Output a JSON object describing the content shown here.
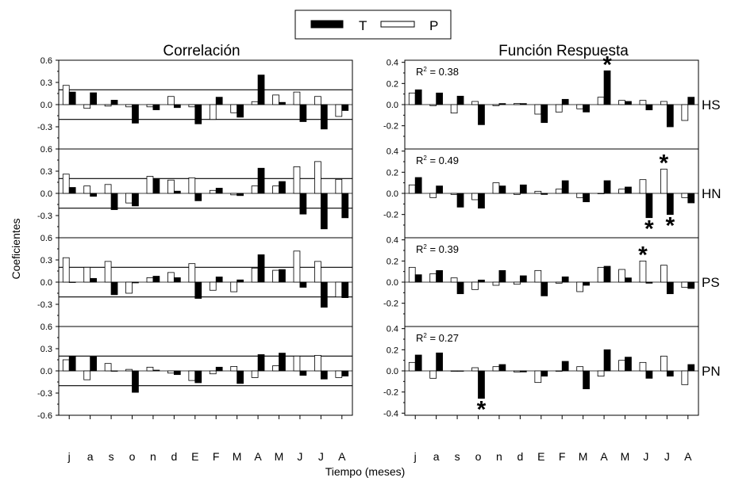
{
  "legend": {
    "t_label": "T",
    "p_label": "P"
  },
  "titles": {
    "left": "Correlación",
    "right": "Función Respuesta"
  },
  "xlabel": "Tiempo (meses)",
  "ylabel": "Coeficientes",
  "months": [
    "j",
    "a",
    "s",
    "o",
    "n",
    "d",
    "E",
    "F",
    "M",
    "A",
    "M",
    "J",
    "J",
    "A"
  ],
  "colors": {
    "T": "#000000",
    "P": "#ffffff",
    "stroke": "#000000"
  },
  "chart_data": [
    {
      "type": "bar",
      "panel": "correlacion",
      "row": "HS",
      "categories": [
        "j",
        "a",
        "s",
        "o",
        "n",
        "d",
        "E",
        "F",
        "M",
        "A",
        "M",
        "J",
        "J",
        "A"
      ],
      "ylim": [
        -0.6,
        0.6
      ],
      "yticks": [
        "0.6",
        "0.3",
        "0.0",
        "-0.3",
        "-0.6"
      ],
      "reference_lines": [
        0.2,
        -0.2
      ],
      "series": [
        {
          "name": "P",
          "values": [
            0.26,
            -0.05,
            -0.02,
            -0.03,
            -0.03,
            0.11,
            -0.03,
            -0.2,
            -0.11,
            0.04,
            0.13,
            0.17,
            0.11,
            -0.16
          ]
        },
        {
          "name": "T",
          "values": [
            0.17,
            0.16,
            0.06,
            -0.25,
            -0.07,
            -0.04,
            -0.26,
            0.1,
            -0.17,
            0.4,
            0.03,
            -0.23,
            -0.33,
            -0.08
          ]
        }
      ]
    },
    {
      "type": "bar",
      "panel": "correlacion",
      "row": "HN",
      "categories": [
        "j",
        "a",
        "s",
        "o",
        "n",
        "d",
        "E",
        "F",
        "M",
        "A",
        "M",
        "J",
        "J",
        "A"
      ],
      "ylim": [
        -0.6,
        0.6
      ],
      "yticks": [
        "0.6",
        "0.3",
        "0.0",
        "-0.3",
        "-0.6"
      ],
      "reference_lines": [
        0.2,
        -0.2
      ],
      "series": [
        {
          "name": "P",
          "values": [
            0.26,
            0.1,
            0.12,
            -0.13,
            0.23,
            0.18,
            0.21,
            0.04,
            -0.02,
            0.1,
            0.1,
            0.36,
            0.43,
            0.19
          ]
        },
        {
          "name": "T",
          "values": [
            0.08,
            -0.04,
            -0.22,
            -0.17,
            0.2,
            0.03,
            -0.1,
            0.07,
            -0.03,
            0.34,
            0.16,
            -0.28,
            -0.48,
            -0.33
          ]
        }
      ]
    },
    {
      "type": "bar",
      "panel": "correlacion",
      "row": "PS",
      "categories": [
        "j",
        "a",
        "s",
        "o",
        "n",
        "d",
        "E",
        "F",
        "M",
        "A",
        "M",
        "J",
        "J",
        "A"
      ],
      "ylim": [
        -0.6,
        0.6
      ],
      "yticks": [
        "0.6",
        "0.3",
        "0.0",
        "-0.3",
        "-0.6"
      ],
      "reference_lines": [
        0.2,
        -0.2
      ],
      "series": [
        {
          "name": "P",
          "values": [
            0.33,
            0.2,
            0.28,
            -0.15,
            0.06,
            0.13,
            0.25,
            -0.11,
            -0.13,
            0.19,
            0.16,
            0.42,
            0.28,
            -0.2
          ]
        },
        {
          "name": "T",
          "values": [
            0.0,
            0.05,
            -0.17,
            -0.01,
            0.08,
            0.06,
            -0.22,
            0.07,
            0.03,
            0.37,
            0.17,
            -0.07,
            -0.34,
            -0.21
          ]
        }
      ]
    },
    {
      "type": "bar",
      "panel": "correlacion",
      "row": "PN",
      "categories": [
        "j",
        "a",
        "s",
        "o",
        "n",
        "d",
        "E",
        "F",
        "M",
        "A",
        "M",
        "J",
        "J",
        "A"
      ],
      "ylim": [
        -0.6,
        0.6
      ],
      "yticks": [
        "0.6",
        "0.3",
        "0.0",
        "-0.3",
        "-0.6"
      ],
      "reference_lines": [
        0.2,
        -0.2
      ],
      "series": [
        {
          "name": "P",
          "values": [
            0.15,
            -0.12,
            0.1,
            0.02,
            0.05,
            -0.03,
            -0.13,
            -0.04,
            0.06,
            -0.09,
            0.07,
            0.2,
            0.21,
            -0.09
          ]
        },
        {
          "name": "T",
          "values": [
            0.2,
            0.19,
            0.0,
            -0.29,
            0.01,
            -0.05,
            -0.16,
            0.05,
            -0.17,
            0.22,
            0.24,
            -0.06,
            -0.11,
            -0.07
          ]
        }
      ]
    },
    {
      "type": "bar",
      "panel": "funcion_respuesta",
      "row": "HS",
      "r2": "= 0.38",
      "categories": [
        "j",
        "a",
        "s",
        "o",
        "n",
        "d",
        "E",
        "F",
        "M",
        "A",
        "M",
        "J",
        "J",
        "A"
      ],
      "ylim": [
        -0.42,
        0.42
      ],
      "yticks": [
        "0.4",
        "0.2",
        "0.0",
        "-0.2"
      ],
      "significant": [
        {
          "category_index": 9,
          "series": "T",
          "position": "above"
        }
      ],
      "series": [
        {
          "name": "P",
          "values": [
            0.11,
            -0.01,
            -0.08,
            0.03,
            -0.01,
            0.01,
            -0.09,
            -0.07,
            -0.04,
            0.07,
            0.04,
            0.04,
            0.03,
            -0.15
          ]
        },
        {
          "name": "T",
          "values": [
            0.14,
            0.11,
            0.08,
            -0.19,
            0.01,
            0.01,
            -0.17,
            0.05,
            -0.07,
            0.32,
            0.03,
            -0.05,
            -0.21,
            0.07
          ]
        }
      ]
    },
    {
      "type": "bar",
      "panel": "funcion_respuesta",
      "row": "HN",
      "r2": "= 0.49",
      "categories": [
        "j",
        "a",
        "s",
        "o",
        "n",
        "d",
        "E",
        "F",
        "M",
        "A",
        "M",
        "J",
        "J",
        "A"
      ],
      "ylim": [
        -0.42,
        0.42
      ],
      "yticks": [
        "0.4",
        "0.2",
        "0.0",
        "-0.2"
      ],
      "significant": [
        {
          "category_index": 11,
          "series": "T",
          "position": "below"
        },
        {
          "category_index": 12,
          "series": "P",
          "position": "above"
        },
        {
          "category_index": 12,
          "series": "T",
          "position": "below"
        }
      ],
      "series": [
        {
          "name": "P",
          "values": [
            0.08,
            -0.04,
            -0.01,
            -0.06,
            0.1,
            -0.01,
            0.02,
            0.04,
            -0.04,
            0.0,
            0.04,
            0.13,
            0.23,
            -0.04
          ]
        },
        {
          "name": "T",
          "values": [
            0.15,
            0.07,
            -0.13,
            -0.14,
            0.07,
            0.08,
            -0.01,
            0.12,
            -0.08,
            0.12,
            0.06,
            -0.23,
            -0.2,
            -0.09
          ]
        }
      ]
    },
    {
      "type": "bar",
      "panel": "funcion_respuesta",
      "row": "PS",
      "r2": "= 0.39",
      "categories": [
        "j",
        "a",
        "s",
        "o",
        "n",
        "d",
        "E",
        "F",
        "M",
        "A",
        "M",
        "J",
        "J",
        "A"
      ],
      "ylim": [
        -0.42,
        0.42
      ],
      "yticks": [
        "0.4",
        "0.2",
        "0.0",
        "-0.2"
      ],
      "significant": [
        {
          "category_index": 11,
          "series": "P",
          "position": "above"
        }
      ],
      "series": [
        {
          "name": "P",
          "values": [
            0.14,
            0.08,
            0.04,
            -0.07,
            -0.03,
            -0.02,
            0.11,
            -0.01,
            -0.09,
            0.14,
            0.12,
            0.2,
            0.16,
            -0.05
          ]
        },
        {
          "name": "T",
          "values": [
            0.07,
            0.11,
            -0.11,
            0.02,
            0.11,
            0.06,
            -0.13,
            0.05,
            -0.03,
            0.15,
            0.04,
            -0.01,
            -0.11,
            -0.06
          ]
        }
      ]
    },
    {
      "type": "bar",
      "panel": "funcion_respuesta",
      "row": "PN",
      "r2": "= 0.27",
      "categories": [
        "j",
        "a",
        "s",
        "o",
        "n",
        "d",
        "E",
        "F",
        "M",
        "A",
        "M",
        "J",
        "J",
        "A"
      ],
      "ylim": [
        -0.42,
        0.42
      ],
      "yticks": [
        "0.4",
        "0.2",
        "0.0",
        "-0.2",
        "-0.4"
      ],
      "significant": [
        {
          "category_index": 3,
          "series": "T",
          "position": "below"
        }
      ],
      "series": [
        {
          "name": "P",
          "values": [
            0.08,
            -0.07,
            0.0,
            0.03,
            0.04,
            -0.01,
            -0.11,
            0.0,
            0.04,
            -0.05,
            0.1,
            0.08,
            0.14,
            -0.13
          ]
        },
        {
          "name": "T",
          "values": [
            0.15,
            0.17,
            0.0,
            -0.26,
            0.06,
            -0.01,
            -0.05,
            0.09,
            -0.17,
            0.2,
            0.13,
            -0.07,
            -0.05,
            0.06
          ]
        }
      ]
    }
  ]
}
